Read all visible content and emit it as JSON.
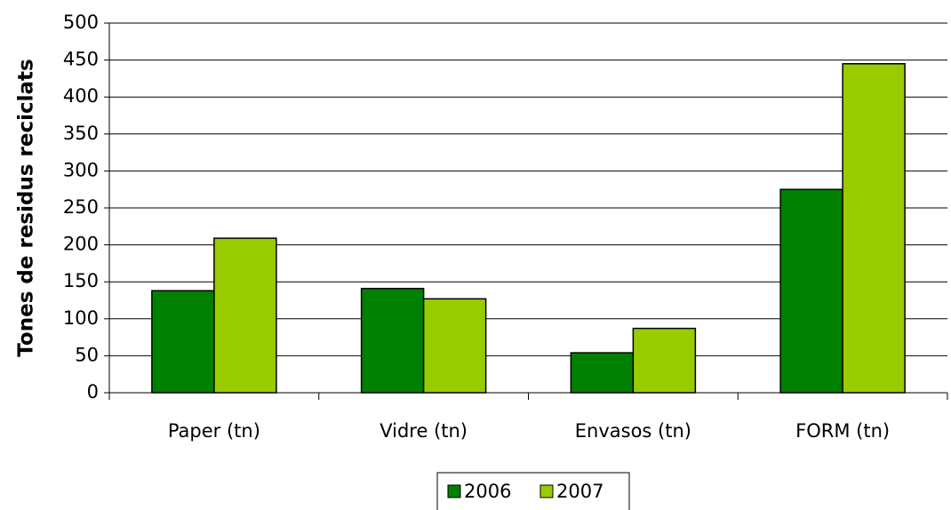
{
  "chart_data": {
    "type": "bar",
    "y_label": "Tones de residus reciclats",
    "categories": [
      "Paper (tn)",
      "Vidre (tn)",
      "Envasos (tn)",
      "FORM (tn)"
    ],
    "series": [
      {
        "name": "2006",
        "color": "#008000",
        "values": [
          138,
          141,
          54,
          275
        ]
      },
      {
        "name": "2007",
        "color": "#99cc00",
        "values": [
          209,
          127,
          87,
          445
        ]
      }
    ],
    "ylim": [
      0,
      500
    ],
    "yticks": [
      0,
      50,
      100,
      150,
      200,
      250,
      300,
      350,
      400,
      450,
      500
    ],
    "grid": true
  }
}
